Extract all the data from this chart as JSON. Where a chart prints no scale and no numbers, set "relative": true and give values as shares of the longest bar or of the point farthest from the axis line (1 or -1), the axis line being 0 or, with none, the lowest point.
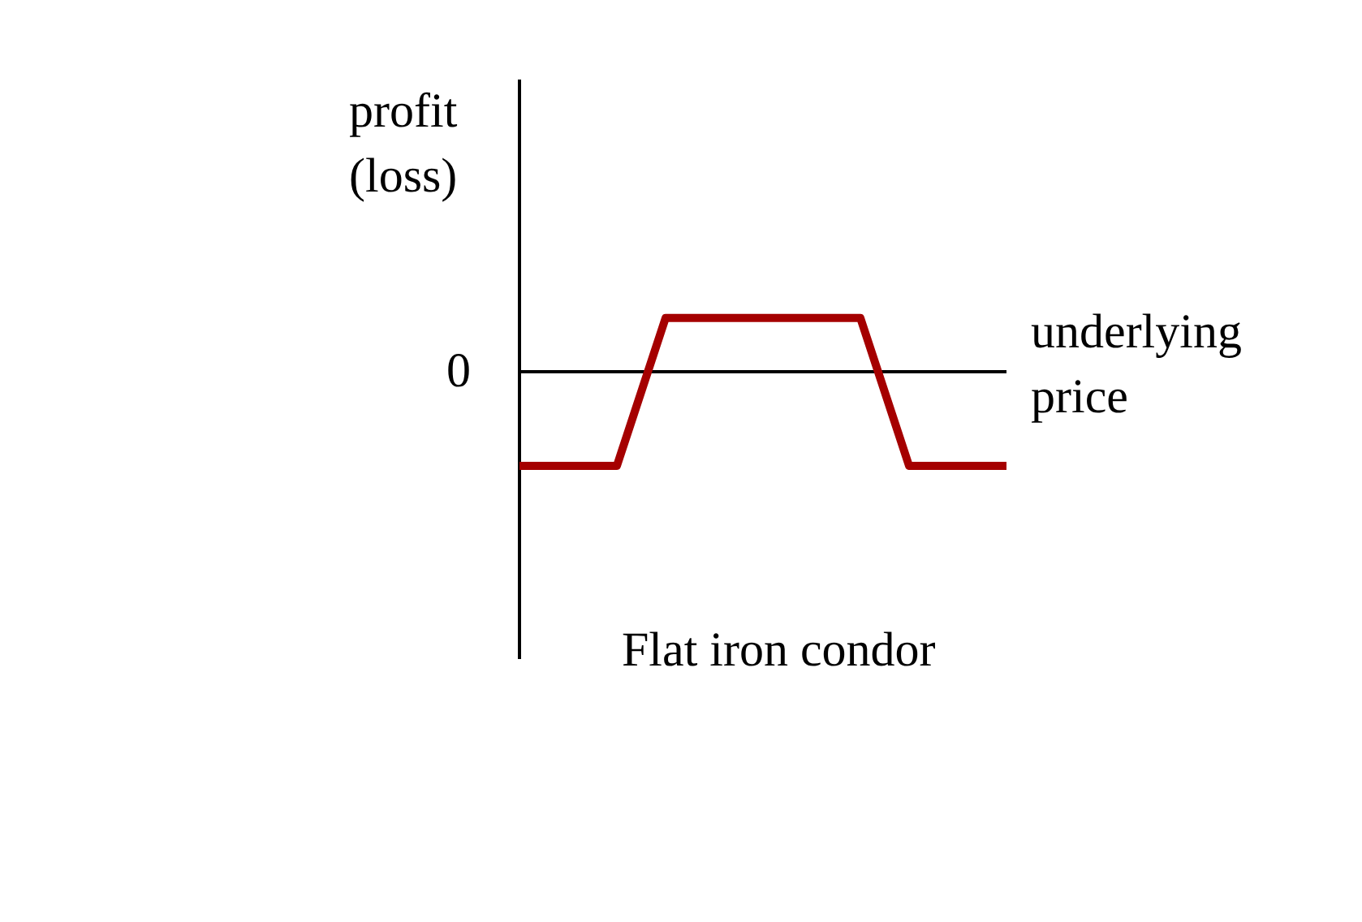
{
  "chart_data": {
    "type": "line",
    "relative": true,
    "ylabel": "profit (loss)",
    "xlabel": "underlying price",
    "categories": [
      null,
      null,
      null,
      null,
      null,
      null,
      null,
      null,
      null,
      null,
      null
    ],
    "series": [
      {
        "color": "#a50000",
        "values": [
          -1,
          -1,
          -1,
          0.57,
          0.57,
          0.57,
          0.57,
          0.57,
          -1,
          -1,
          -1
        ]
      }
    ],
    "annotations": [
      "0",
      "Flat iron condor"
    ],
    "marker": "none",
    "line_style": "solid"
  }
}
